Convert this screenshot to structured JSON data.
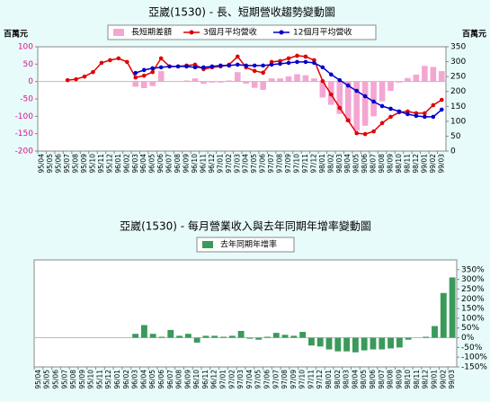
{
  "chart_data": [
    {
      "type": "bar-line",
      "title": "亞崴(1530) -  長、短期營收趨勢變動圖",
      "y_label": "百萬元",
      "y2_label": "百萬元",
      "categories": [
        "95/04",
        "95/05",
        "95/06",
        "95/07",
        "95/08",
        "95/09",
        "95/10",
        "95/11",
        "95/12",
        "96/01",
        "96/02",
        "96/03",
        "96/04",
        "96/05",
        "96/06",
        "96/07",
        "96/08",
        "96/09",
        "96/10",
        "96/11",
        "96/12",
        "97/01",
        "97/02",
        "97/03",
        "97/04",
        "97/05",
        "97/06",
        "97/07",
        "97/08",
        "97/09",
        "97/10",
        "97/11",
        "97/12",
        "98/01",
        "98/02",
        "98/03",
        "98/04",
        "98/05",
        "98/06",
        "98/07",
        "98/08",
        "98/09",
        "98/10",
        "98/11",
        "98/12",
        "99/01",
        "99/02",
        "99/03"
      ],
      "series": [
        {
          "name": "長短期差額",
          "type": "bar",
          "color": "#f4a6d2",
          "values": [
            null,
            null,
            null,
            null,
            null,
            null,
            null,
            null,
            null,
            null,
            null,
            -15,
            -19,
            -13,
            30,
            0,
            0,
            3,
            9,
            -6,
            -3,
            -3,
            3,
            27,
            -6,
            -18,
            -24,
            9,
            9,
            15,
            21,
            18,
            9,
            -46,
            -67,
            -93,
            -117,
            -142,
            -127,
            -100,
            -57,
            -27,
            -3,
            10,
            20,
            45,
            42,
            30
          ]
        },
        {
          "name": "3個月平均營收",
          "type": "line",
          "axis": "y2",
          "color": "#e00000",
          "values": [
            null,
            null,
            null,
            238,
            241,
            250,
            265,
            296,
            305,
            311,
            299,
            247,
            253,
            265,
            311,
            284,
            284,
            287,
            290,
            275,
            281,
            284,
            290,
            317,
            281,
            269,
            263,
            299,
            302,
            311,
            320,
            317,
            305,
            235,
            190,
            145,
            103,
            60,
            57,
            66,
            94,
            115,
            130,
            133,
            127,
            127,
            154,
            172
          ]
        },
        {
          "name": "12個月平均營收",
          "type": "line",
          "axis": "y2",
          "color": "#0000cc",
          "values": [
            null,
            null,
            null,
            null,
            null,
            null,
            null,
            null,
            null,
            null,
            null,
            262,
            272,
            278,
            281,
            284,
            284,
            284,
            281,
            281,
            284,
            287,
            287,
            290,
            287,
            287,
            287,
            290,
            293,
            296,
            299,
            299,
            296,
            281,
            257,
            238,
            220,
            202,
            184,
            166,
            151,
            142,
            133,
            124,
            118,
            115,
            115,
            139
          ]
        }
      ],
      "ylim": [
        -200,
        100
      ],
      "yticks": [
        100,
        50,
        0,
        -50,
        -100,
        -150,
        -200
      ],
      "ytick_color": "#e0108a",
      "y2lim": [
        0,
        350
      ],
      "y2ticks": [
        350,
        300,
        250,
        200,
        150,
        100,
        50,
        0
      ],
      "grid": false
    },
    {
      "type": "bar",
      "title": "亞崴(1530) -  每月營業收入與去年同期年增率變動圖",
      "categories": [
        "95/04",
        "95/05",
        "95/06",
        "95/07",
        "95/08",
        "95/09",
        "95/10",
        "95/11",
        "95/12",
        "96/01",
        "96/02",
        "96/03",
        "96/04",
        "96/05",
        "96/06",
        "96/07",
        "96/08",
        "96/09",
        "96/10",
        "96/11",
        "96/12",
        "97/01",
        "97/02",
        "97/03",
        "97/04",
        "97/05",
        "97/06",
        "97/07",
        "97/08",
        "97/09",
        "97/10",
        "97/11",
        "97/12",
        "98/01",
        "98/02",
        "98/03",
        "98/04",
        "98/05",
        "98/06",
        "98/07",
        "98/08",
        "98/09",
        "98/10",
        "98/11",
        "98/12",
        "99/01",
        "99/02",
        "99/03"
      ],
      "series": [
        {
          "name": "去年同期年增率",
          "type": "bar",
          "axis": "y2",
          "color": "#3a9a5a",
          "values": [
            null,
            null,
            null,
            null,
            null,
            null,
            null,
            null,
            null,
            null,
            null,
            20,
            65,
            20,
            5,
            40,
            10,
            20,
            -25,
            10,
            10,
            5,
            10,
            35,
            -5,
            -10,
            5,
            25,
            15,
            10,
            30,
            -40,
            -45,
            -60,
            -70,
            -70,
            -75,
            -65,
            -60,
            -60,
            -55,
            -50,
            -10,
            0,
            5,
            60,
            230,
            310
          ]
        }
      ],
      "y2lim": [
        -150,
        400
      ],
      "y2ticks": [
        {
          "value": 350,
          "label": "350%"
        },
        {
          "value": 300,
          "label": "300%"
        },
        {
          "value": 250,
          "label": "250%"
        },
        {
          "value": 200,
          "label": "200%"
        },
        {
          "value": 150,
          "label": "150%"
        },
        {
          "value": 100,
          "label": "100%"
        },
        {
          "value": 50,
          "label": "50%"
        },
        {
          "value": 0,
          "label": "0%"
        },
        {
          "value": -50,
          "label": "-50%"
        },
        {
          "value": -100,
          "label": "-100%"
        },
        {
          "value": -150,
          "label": "-150%"
        }
      ],
      "grid": false
    }
  ]
}
